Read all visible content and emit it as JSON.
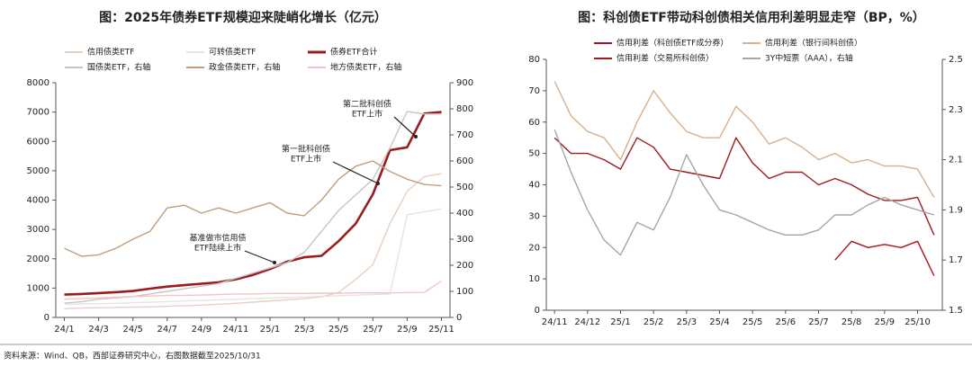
{
  "chart_data": [
    {
      "type": "line",
      "title": "图：2025年债券ETF规模迎来陡峭化增长（亿元）",
      "categories": [
        "24/1",
        null,
        "24/3",
        null,
        "24/5",
        null,
        "24/7",
        null,
        "24/9",
        null,
        "24/11",
        null,
        "25/1",
        null,
        "25/3",
        null,
        "25/5",
        null,
        "25/7",
        null,
        "25/9",
        null,
        "25/11"
      ],
      "series": [
        {
          "name": "信用债类ETF",
          "color": "#e8cfc0",
          "values": [
            300,
            320,
            330,
            340,
            350,
            360,
            380,
            400,
            420,
            450,
            480,
            520,
            560,
            600,
            640,
            700,
            850,
            1300,
            1800,
            3200,
            4300,
            4800,
            4900
          ]
        },
        {
          "name": "可转债类ETF",
          "color": "#e4e4e4",
          "values": [
            450,
            460,
            470,
            480,
            500,
            520,
            540,
            560,
            580,
            600,
            620,
            640,
            660,
            680,
            700,
            720,
            740,
            760,
            780,
            800,
            3500,
            3600,
            3700
          ]
        },
        {
          "name": "债券ETF合计",
          "color": "#9b1b1e",
          "values": [
            780,
            800,
            830,
            860,
            900,
            980,
            1050,
            1100,
            1150,
            1200,
            1300,
            1450,
            1650,
            1900,
            2050,
            2100,
            2600,
            3200,
            4200,
            5700,
            5800,
            6950,
            7000
          ]
        },
        {
          "name": "国债类ETF，右轴",
          "color": "#c6c6c6",
          "axis": "y2",
          "values": [
            55,
            60,
            70,
            75,
            80,
            90,
            100,
            110,
            120,
            130,
            150,
            170,
            190,
            210,
            250,
            330,
            410,
            470,
            530,
            650,
            790,
            780,
            780
          ]
        },
        {
          "name": "政金债类ETF，右轴",
          "color": "#bf9e7c",
          "axis": "y2",
          "values": [
            265,
            235,
            240,
            265,
            300,
            330,
            420,
            430,
            400,
            420,
            400,
            420,
            440,
            400,
            390,
            450,
            530,
            580,
            600,
            560,
            530,
            510,
            505
          ]
        },
        {
          "name": "地方债类ETF，右轴",
          "color": "#f2c4c4",
          "axis": "y2",
          "values": [
            70,
            72,
            75,
            78,
            80,
            82,
            84,
            85,
            86,
            88,
            90,
            90,
            92,
            92,
            92,
            93,
            93,
            94,
            94,
            94,
            95,
            96,
            140
          ]
        }
      ],
      "ylim": [
        0,
        8000
      ],
      "yticks": [
        0,
        1000,
        2000,
        3000,
        4000,
        5000,
        6000,
        7000,
        8000
      ],
      "y2lim": [
        0,
        900
      ],
      "y2ticks": [
        0,
        100,
        200,
        300,
        400,
        500,
        600,
        700,
        800,
        900
      ],
      "annotations": [
        [
          "基准做市信用债",
          "ETF陆续上市"
        ],
        [
          "第一批科创债",
          "ETF上市"
        ],
        [
          "第二批科创债",
          "ETF上市"
        ]
      ]
    },
    {
      "type": "line",
      "title": "图：科创债ETF带动科创债相关信用利差明显走窄（BP，%）",
      "categories": [
        "24/11",
        null,
        "24/12",
        null,
        "25/1",
        null,
        "25/2",
        null,
        "25/3",
        null,
        "25/4",
        null,
        "25/5",
        null,
        "25/6",
        null,
        "25/7",
        null,
        "25/8",
        null,
        "25/9",
        null,
        "25/10",
        null
      ],
      "series": [
        {
          "name": "信用利差（科创债ETF成分券）",
          "color": "#b0111e",
          "values": [
            null,
            null,
            null,
            null,
            null,
            null,
            null,
            null,
            null,
            null,
            null,
            null,
            null,
            null,
            null,
            null,
            null,
            16,
            22,
            20,
            21,
            20,
            22,
            11
          ]
        },
        {
          "name": "信用利差（银行间科创债）",
          "color": "#d9b08c",
          "values": [
            73,
            62,
            57,
            55,
            48,
            60,
            70,
            63,
            57,
            55,
            55,
            65,
            60,
            53,
            55,
            52,
            48,
            50,
            47,
            48,
            46,
            46,
            45,
            36
          ]
        },
        {
          "name": "信用利差（交易所科创债）",
          "color": "#9b1b1e",
          "values": [
            55,
            50,
            50,
            48,
            45,
            55,
            52,
            45,
            44,
            43,
            42,
            55,
            47,
            42,
            44,
            44,
            40,
            42,
            40,
            37,
            35,
            35,
            36,
            24
          ]
        },
        {
          "name": "3Y中短票（AAA），右轴",
          "color": "#a6a6a6",
          "axis": "y2",
          "values": [
            2.22,
            2.05,
            1.9,
            1.78,
            1.72,
            1.85,
            1.82,
            1.95,
            2.12,
            2.0,
            1.9,
            1.88,
            1.85,
            1.82,
            1.8,
            1.8,
            1.82,
            1.88,
            1.88,
            1.92,
            1.95,
            1.92,
            1.9,
            1.88
          ]
        }
      ],
      "ylim": [
        0,
        80
      ],
      "yticks": [
        0,
        10,
        20,
        30,
        40,
        50,
        60,
        70,
        80
      ],
      "y2lim": [
        1.5,
        2.5
      ],
      "y2ticks": [
        1.5,
        1.7,
        1.9,
        2.1,
        2.3,
        2.5
      ]
    }
  ],
  "source": "资料来源：Wind、QB，西部证券研究中心，右图数据截至2025/10/31"
}
